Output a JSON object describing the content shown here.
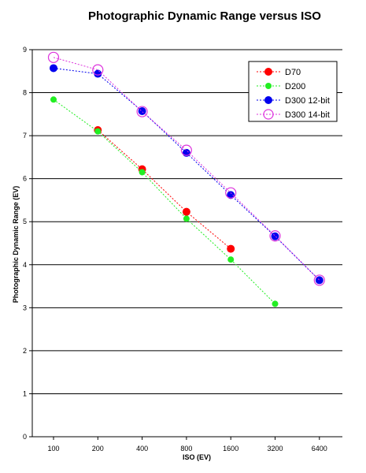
{
  "chart_data": {
    "type": "line",
    "title": "Photographic Dynamic Range versus ISO",
    "xlabel": "ISO (EV)",
    "ylabel": "Photographic Dynamic Range (EV)",
    "categories": [
      "100",
      "200",
      "400",
      "800",
      "1600",
      "3200",
      "6400"
    ],
    "ylim": [
      0,
      9
    ],
    "yticks": [
      "0",
      "1",
      "2",
      "3",
      "4",
      "5",
      "6",
      "7",
      "8",
      "9"
    ],
    "grid": true,
    "legend_position": "top-right",
    "series": [
      {
        "name": "D70",
        "color": "#ff0000",
        "marker": "filled-large",
        "values": [
          null,
          7.13,
          6.22,
          5.23,
          4.37,
          null,
          null
        ]
      },
      {
        "name": "D200",
        "color": "#22ee22",
        "marker": "filled-small",
        "values": [
          7.84,
          7.1,
          6.15,
          5.07,
          4.12,
          3.09,
          null
        ]
      },
      {
        "name": "D300 12-bit",
        "color": "#0000ee",
        "marker": "filled-large",
        "values": [
          8.57,
          8.44,
          7.57,
          6.6,
          5.62,
          4.66,
          3.64
        ]
      },
      {
        "name": "D300 14-bit",
        "color": "#dd33dd",
        "marker": "hollow-large",
        "values": [
          8.82,
          8.53,
          7.56,
          6.66,
          5.67,
          4.67,
          3.64
        ]
      }
    ]
  }
}
